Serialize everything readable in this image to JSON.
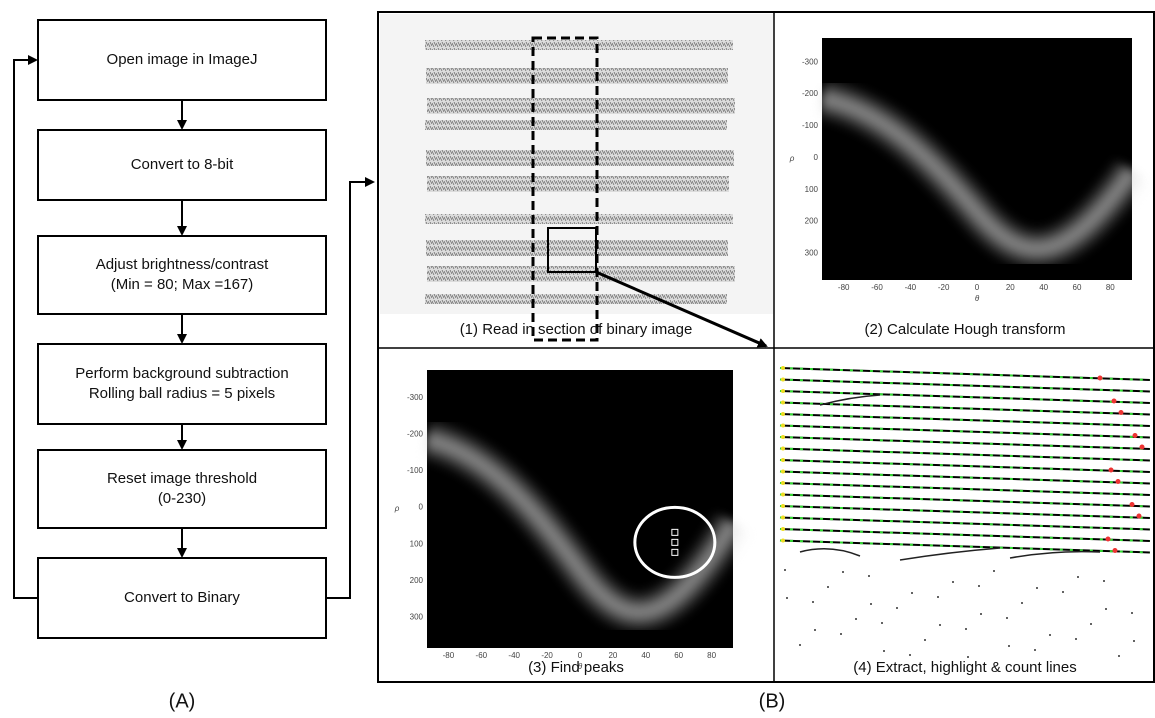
{
  "flowchart": {
    "label": "(A)",
    "steps": [
      [
        "Open image in ImageJ"
      ],
      [
        "Convert to 8-bit"
      ],
      [
        "Adjust brightness/contrast",
        "(Min = 80; Max =167)"
      ],
      [
        "Perform background subtraction",
        "Rolling ball radius = 5 pixels"
      ],
      [
        "Reset image threshold",
        "(0-230)"
      ],
      [
        "Convert to Binary"
      ]
    ]
  },
  "panel_b": {
    "label": "(B)",
    "captions": [
      "(1) Read in section of binary image",
      "(2) Calculate Hough transform",
      "(3) Find peaks",
      "(4) Extract, highlight & count lines"
    ],
    "plot_axes": {
      "xticks": [
        -80,
        -60,
        -40,
        -20,
        0,
        20,
        40,
        60,
        80
      ],
      "yticks": [
        -300,
        -200,
        -100,
        0,
        100,
        200,
        300
      ],
      "xlabel": "θ",
      "ylabel": "ρ"
    }
  }
}
